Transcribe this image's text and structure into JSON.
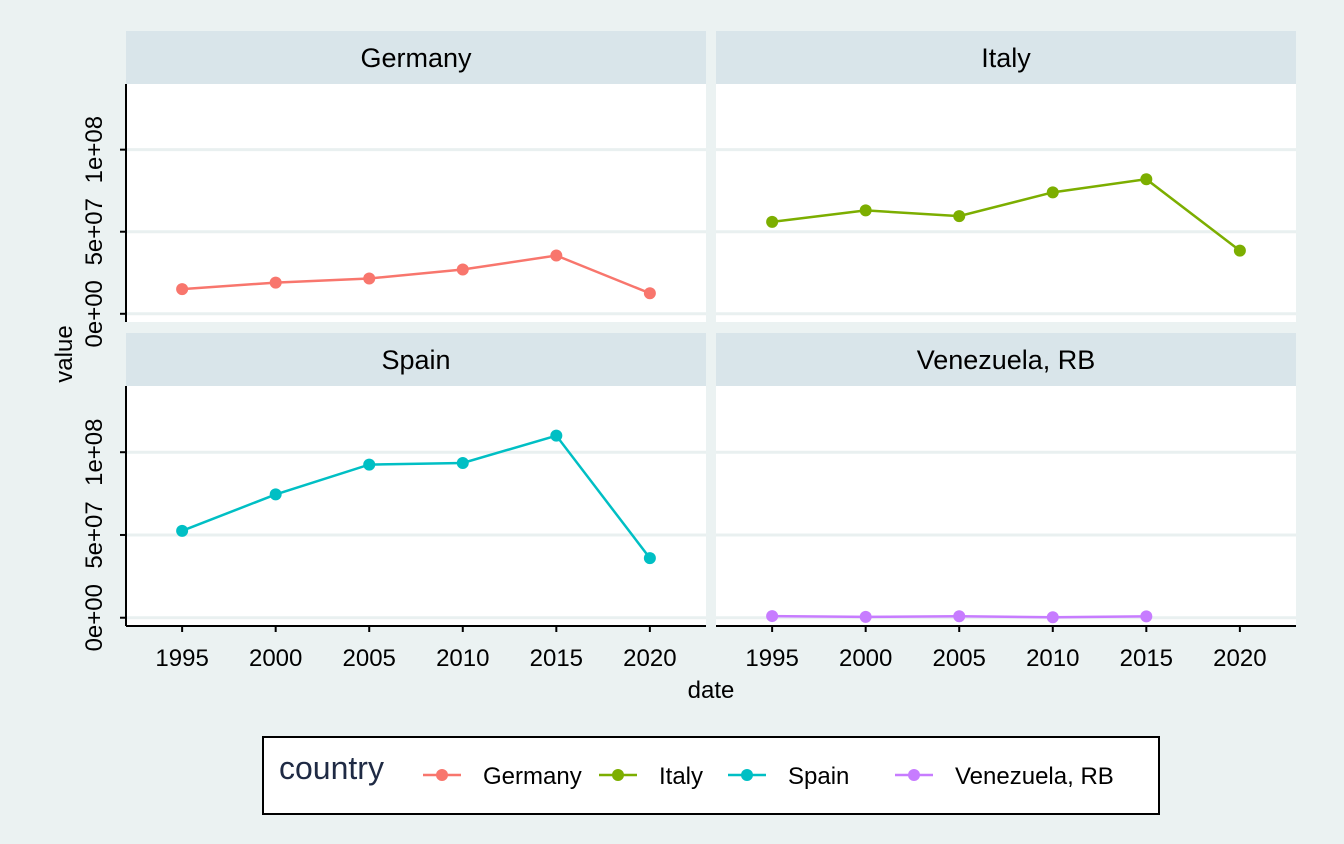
{
  "chart_data": {
    "type": "line",
    "layout": "faceted 2x2 (facet_wrap by country)",
    "xlabel": "date",
    "ylabel": "value",
    "x_ticks": [
      "1995",
      "2000",
      "2005",
      "2010",
      "2015",
      "2020"
    ],
    "xlim": [
      1992,
      2023
    ],
    "y_ticks": [
      "0e+00",
      "5e+07",
      "1e+08"
    ],
    "ylim": [
      -5000000,
      140000000
    ],
    "grid": true,
    "legend": {
      "title": "country",
      "position": "bottom"
    },
    "x": [
      1995,
      2000,
      2005,
      2010,
      2015,
      2020
    ],
    "series": [
      {
        "name": "Germany",
        "color": "#f8766d",
        "values": [
          15000000,
          19000000,
          21500000,
          27000000,
          35500000,
          12500000
        ]
      },
      {
        "name": "Italy",
        "color": "#7cae00",
        "values": [
          56000000,
          63000000,
          59500000,
          74000000,
          82000000,
          38500000
        ]
      },
      {
        "name": "Spain",
        "color": "#00bfc4",
        "values": [
          52500000,
          74500000,
          92500000,
          93500000,
          110000000,
          36000000
        ]
      },
      {
        "name": "Venezuela, RB",
        "color": "#c77cff",
        "values": [
          1000000,
          500000,
          900000,
          300000,
          800000,
          null
        ]
      }
    ]
  }
}
